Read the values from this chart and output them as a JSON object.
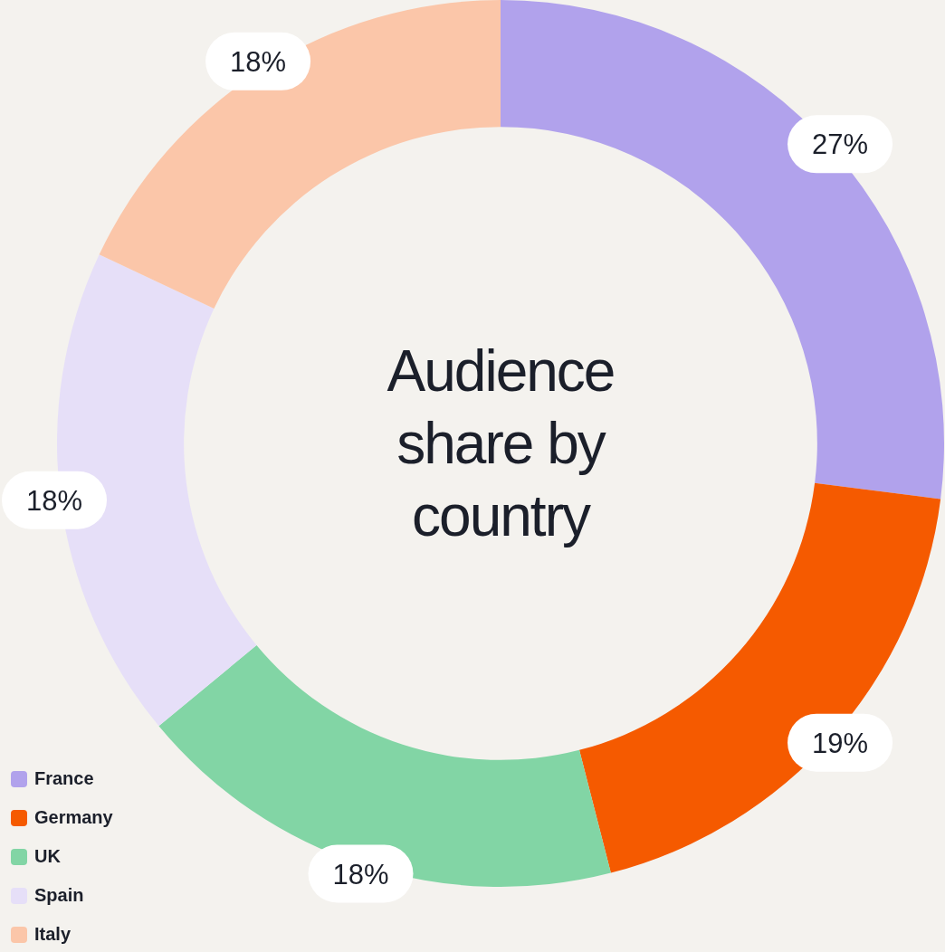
{
  "chart_data": {
    "type": "donut",
    "title": "Audience share by country",
    "categories": [
      "France",
      "Germany",
      "UK",
      "Spain",
      "Italy"
    ],
    "values": [
      27,
      19,
      18,
      18,
      18
    ],
    "colors": [
      "#b1a2ec",
      "#f55a00",
      "#82d5a5",
      "#e6dff8",
      "#fbc6a9"
    ],
    "value_labels": [
      "27%",
      "19%",
      "18%",
      "18%",
      "18%"
    ],
    "legend": "bottom left"
  }
}
